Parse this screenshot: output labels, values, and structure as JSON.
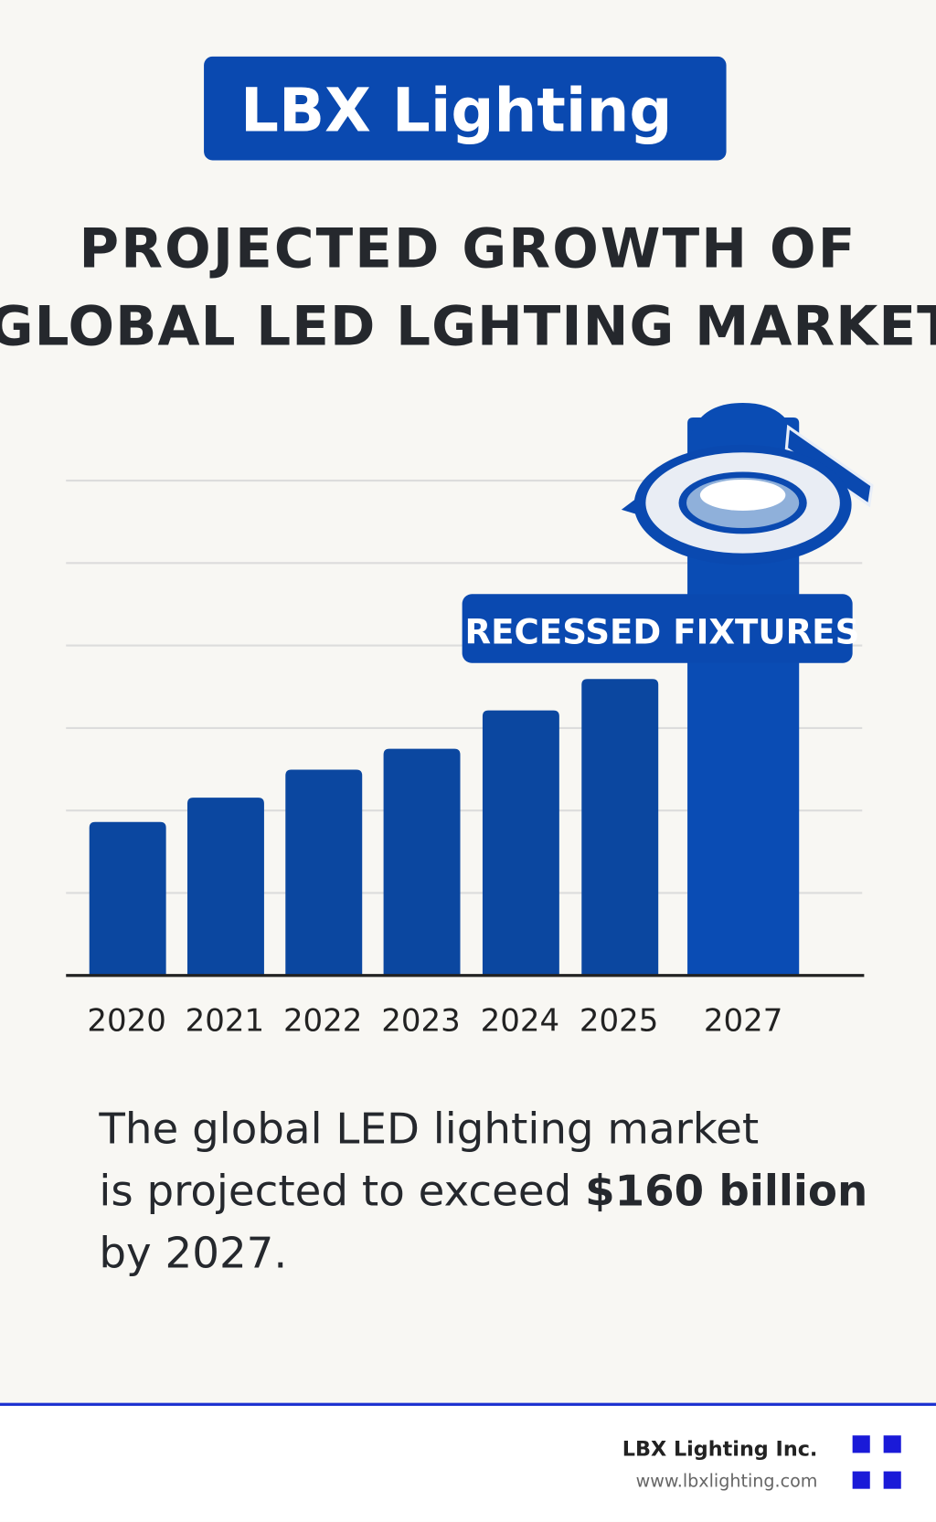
{
  "header": {
    "brand": "LBX Lighting"
  },
  "chart_data": {
    "type": "bar",
    "title": [
      "PROJECTED GROWTH OF",
      "GLOBAL LED LGHTING MARKET"
    ],
    "categories": [
      "2020",
      "2021",
      "2022",
      "2023",
      "2024",
      "2025",
      "2027"
    ],
    "values": [
      44,
      51,
      59,
      65,
      76,
      85,
      160
    ],
    "ylim": [
      0,
      160
    ],
    "colors": [
      "#0b47a0",
      "#0b47a0",
      "#0b47a0",
      "#0b47a0",
      "#0b47a0",
      "#0b47a0",
      "#0a4cb4"
    ],
    "annotation": "RECESSED FIXTURES"
  },
  "caption": {
    "line1": "The global LED lighting market",
    "line2": "is projected to exceed ",
    "highlight": "$160 billion",
    "line3": "by 2027."
  },
  "footer": {
    "company": "LBX Lighting Inc.",
    "url": "www.lbxlighting.com"
  }
}
